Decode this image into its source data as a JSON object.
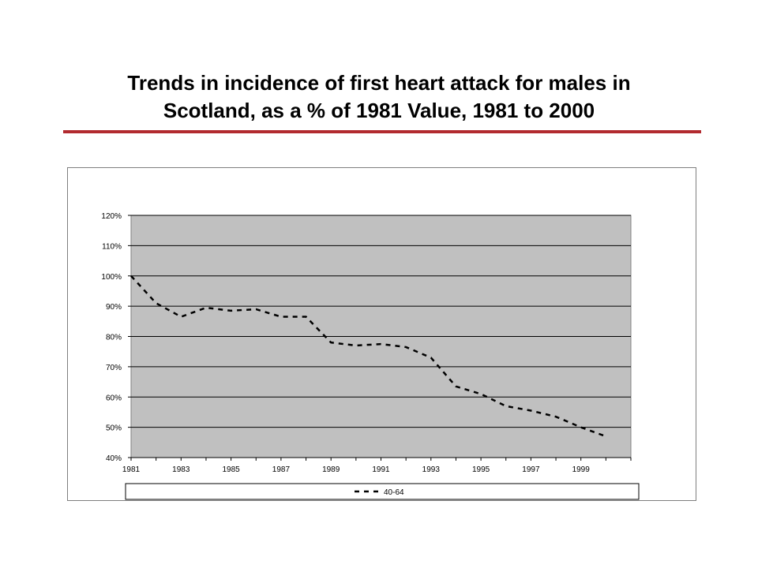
{
  "title_line1": "Trends in incidence of first heart attack for males in",
  "title_line2": "Scotland,  as a % of 1981 Value, 1981 to 2000",
  "accent_color": "#b22a2f",
  "plot_bg_color": "#c0c0c0",
  "chart_data": {
    "type": "line",
    "x": [
      1981,
      1982,
      1983,
      1984,
      1985,
      1986,
      1987,
      1988,
      1989,
      1990,
      1991,
      1992,
      1993,
      1994,
      1995,
      1996,
      1997,
      1998,
      1999,
      2000
    ],
    "x_tick_labels": [
      "1981",
      "1983",
      "1985",
      "1987",
      "1989",
      "1991",
      "1993",
      "1995",
      "1997",
      "1999"
    ],
    "y_tick_labels": [
      "40%",
      "50%",
      "60%",
      "70%",
      "80%",
      "90%",
      "100%",
      "110%",
      "120%"
    ],
    "ylim": [
      40,
      120
    ],
    "y_unit": "%",
    "grid": true,
    "legend_position": "bottom",
    "series": [
      {
        "name": "40-64",
        "line_style": "dashed",
        "color": "#000000",
        "values": [
          100,
          91,
          86.5,
          89.5,
          88.5,
          89,
          86.5,
          86.5,
          78,
          77,
          77.5,
          76.5,
          73,
          63.5,
          61,
          57,
          55.5,
          53.5,
          50,
          47
        ]
      }
    ]
  }
}
